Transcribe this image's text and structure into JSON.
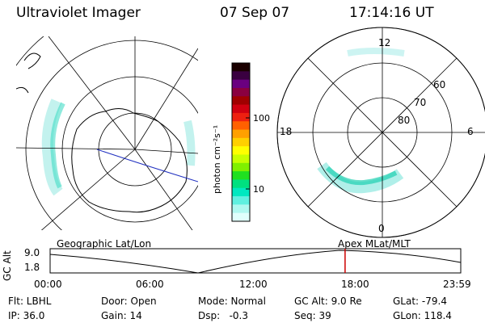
{
  "header": {
    "title": "Ultraviolet Imager",
    "date": "07 Sep 07",
    "time": "17:14:16 UT"
  },
  "left_map": {
    "label": "Geographic Lat/Lon"
  },
  "right_map": {
    "label": "Apex  MLat/MLT",
    "mlt_labels": {
      "top": "12",
      "left": "18",
      "right": "6",
      "bottom": "0"
    },
    "lat_labels": [
      "60",
      "70",
      "80"
    ]
  },
  "colorbar": {
    "unit_label": "photon cm⁻²s⁻¹",
    "ticks": [
      "100",
      "10"
    ],
    "colors": [
      "#1a0000",
      "#3a0040",
      "#6a0080",
      "#8a0040",
      "#a00000",
      "#d00010",
      "#ee2010",
      "#ff6000",
      "#ffa000",
      "#ffd000",
      "#ffff00",
      "#c8ff00",
      "#80f000",
      "#20e020",
      "#00e080",
      "#00e8c0",
      "#60f0e0",
      "#b0f8f0",
      "#e0fffc"
    ]
  },
  "timeline": {
    "ylabel": "GC Alt",
    "yticks": [
      "9.0",
      "1.8"
    ],
    "xticks": [
      "00:00",
      "06:00",
      "12:00",
      "18:00",
      "23:59"
    ],
    "marker_color": "#cc0000",
    "marker_time_fraction": 0.7183
  },
  "info": {
    "row1": [
      "Flt: LBHL",
      "Door: Open",
      "Mode: Normal",
      "GC Alt: 9.0 Re",
      "GLat: -79.4"
    ],
    "row2": [
      "IP: 36.0",
      "Gain: 14",
      "Dsp:   -0.3",
      "Seq: 39",
      "GLon: 118.4"
    ]
  }
}
